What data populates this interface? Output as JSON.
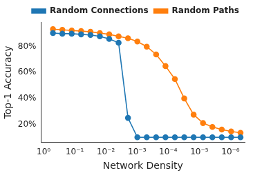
{
  "chart_data": {
    "type": "line",
    "x_label": "Network Density",
    "y_label": "Top-1 Accuracy",
    "x": [
      0.5,
      0.25,
      0.125,
      0.0625,
      0.03125,
      0.015625,
      0.0078125,
      0.00390625,
      0.001953125,
      0.0009765625,
      0.00048828125,
      0.000244140625,
      0.0001220703125,
      6.103515625e-05,
      3.0517578125e-05,
      1.52587890625e-05,
      7.62939453125e-06,
      3.814697265625e-06,
      1.9073486328125e-06,
      9.5367431640625e-07,
      4.76837158203125e-07
    ],
    "series": [
      {
        "name": "Random Connections",
        "color": "#1f77b4",
        "marker": "circle",
        "values": [
          90.5,
          90,
          90,
          89.5,
          89,
          88,
          86,
          83,
          25,
          10,
          10,
          10,
          10,
          10,
          10,
          10,
          10,
          10,
          10,
          10,
          10
        ]
      },
      {
        "name": "Random Paths",
        "color": "#ff7f0e",
        "marker": "circle",
        "values": [
          93.5,
          93,
          92.5,
          92,
          91.5,
          90.5,
          89.5,
          88,
          86.5,
          84,
          80,
          74,
          65,
          55,
          40,
          27.5,
          21,
          18,
          16,
          14.5,
          13.5
        ]
      }
    ],
    "log": "x",
    "xlim": [
      1.2,
      3.5e-07
    ],
    "xticks": [
      {
        "value": 1,
        "label": "10⁰"
      },
      {
        "value": 0.1,
        "label": "10⁻¹"
      },
      {
        "value": 0.01,
        "label": "10⁻²"
      },
      {
        "value": 0.001,
        "label": "10⁻³"
      },
      {
        "value": 0.0001,
        "label": "10⁻⁴"
      },
      {
        "value": 1e-05,
        "label": "10⁻⁵"
      },
      {
        "value": 1e-06,
        "label": "10⁻⁶"
      }
    ],
    "ylim": [
      6,
      99
    ],
    "yticks": [
      {
        "value": 20,
        "label": "20%"
      },
      {
        "value": 40,
        "label": "40%"
      },
      {
        "value": 60,
        "label": "60%"
      },
      {
        "value": 80,
        "label": "80%"
      }
    ],
    "grid": false,
    "legend": "top-right"
  }
}
